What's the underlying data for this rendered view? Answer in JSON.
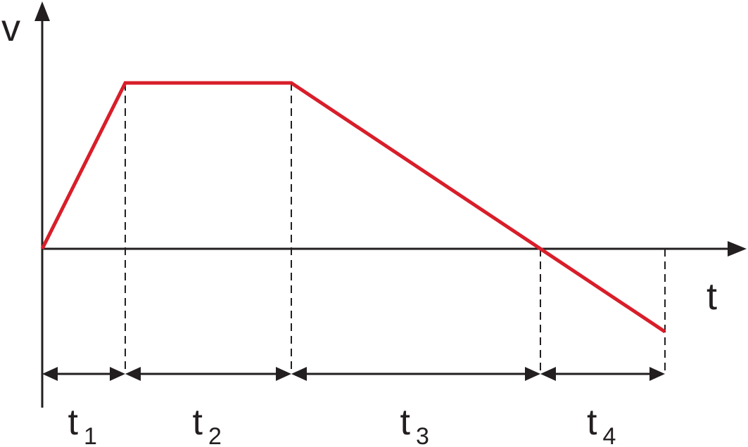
{
  "chart_data": {
    "type": "line",
    "title": "",
    "xlabel": "t",
    "ylabel": "v",
    "grid": false,
    "x": [
      0,
      1,
      3,
      6,
      7.5
    ],
    "series": [
      {
        "values": [
          0,
          1,
          1,
          0,
          -0.5
        ],
        "color": "#d81e2a"
      }
    ],
    "intervals": [
      {
        "symbol": "t",
        "subscript": "1",
        "start": 0,
        "end": 1
      },
      {
        "symbol": "t",
        "subscript": "2",
        "start": 1,
        "end": 3
      },
      {
        "symbol": "t",
        "subscript": "3",
        "start": 3,
        "end": 6
      },
      {
        "symbol": "t",
        "subscript": "4",
        "start": 6,
        "end": 7.5
      }
    ]
  }
}
